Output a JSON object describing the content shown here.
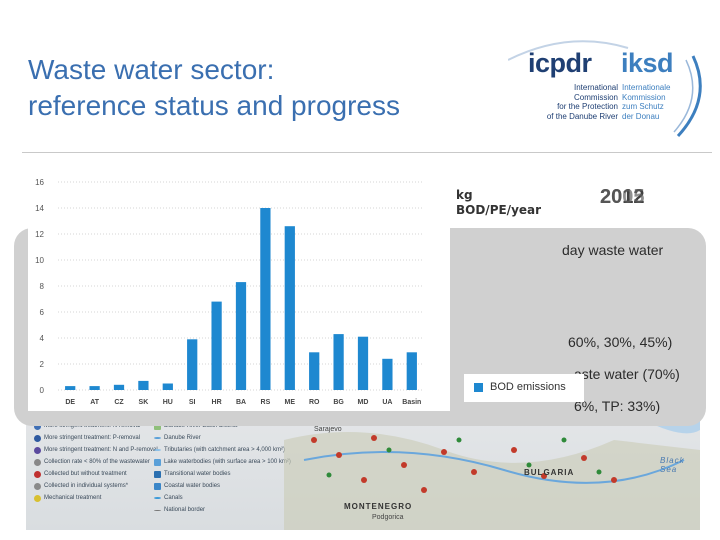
{
  "slide": {
    "title_line1": "Waste water sector:",
    "title_line2": "reference status and progress"
  },
  "logo": {
    "word_left": "icpdr",
    "word_right": "iksd",
    "sub_left": [
      "International",
      "Commission",
      "for the Protection",
      "of the Danube River"
    ],
    "sub_right": [
      "Internationale",
      "Kommission",
      "zum Schutz",
      "der Donau"
    ]
  },
  "overlay": {
    "units_line1": "kg",
    "units_line2": "BOD/PE/year",
    "year_front": "2012",
    "year_back": "2005"
  },
  "panel_text": {
    "line1": "day waste water",
    "line2": "60%, 30%, 45%)",
    "line3": "aste water (70%)",
    "line4": "6%, TP: 33%)"
  },
  "map": {
    "legend_col1": [
      "More stringent treatment: N-removal",
      "More stringent treatment: P-removal",
      "More stringent treatment: N and P-removal",
      "Collection rate < 80% of the wastewater",
      "Collected but without treatment",
      "Collected in individual systems*",
      "Mechanical treatment"
    ],
    "legend_col2": [
      "Danube River Basin District",
      "Danube River",
      "Tributaries (with catchment area > 4,000 km²)",
      "Lake waterbodies (with surface area > 100 km²)",
      "Transitional water bodies",
      "Coastal water bodies",
      "Canals",
      "National border"
    ],
    "places": [
      "MONTENEGRO",
      "BULGARIA",
      "Black Sea"
    ],
    "cities": [
      "Podgorica",
      "Sarajevo"
    ]
  },
  "chart_data": {
    "type": "bar",
    "title": "",
    "xlabel": "",
    "ylabel": "kg BOD/PE/year",
    "categories": [
      "DE",
      "AT",
      "CZ",
      "SK",
      "HU",
      "SI",
      "HR",
      "BA",
      "RS",
      "ME",
      "RO",
      "BG",
      "MD",
      "UA",
      "Basin"
    ],
    "series": [
      {
        "name": "BOD emissions",
        "values": [
          0.3,
          0.3,
          0.4,
          0.7,
          0.5,
          3.9,
          6.8,
          8.3,
          14.0,
          12.6,
          2.9,
          4.3,
          4.1,
          2.4,
          2.9
        ]
      }
    ],
    "ylim": [
      0,
      16
    ],
    "yticks": [
      0,
      2,
      4,
      6,
      8,
      10,
      12,
      14,
      16
    ],
    "grid": true,
    "legend_position": "bottom-right",
    "color": "#1e88d0"
  }
}
